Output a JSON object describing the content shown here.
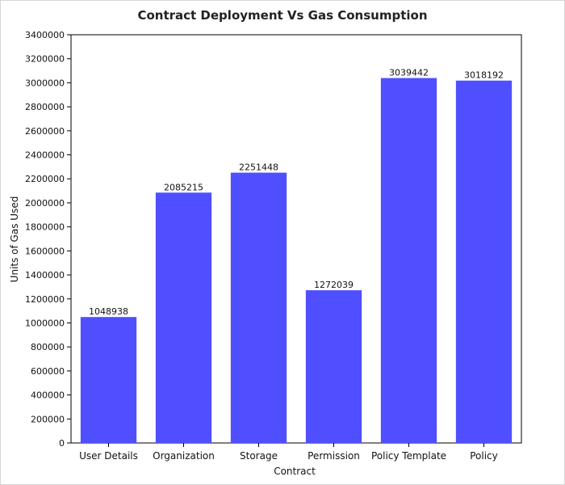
{
  "chart_data": {
    "type": "bar",
    "title": "Contract Deployment Vs Gas Consumption",
    "xlabel": "Contract",
    "ylabel": "Units of Gas Used",
    "categories": [
      "User Details",
      "Organization",
      "Storage",
      "Permission",
      "Policy Template",
      "Policy"
    ],
    "values": [
      1048938,
      2085215,
      2251448,
      1272039,
      3039442,
      3018192
    ],
    "data_labels": [
      "1048938",
      "2085215",
      "2251448",
      "1272039",
      "3039442",
      "3018192"
    ],
    "ylim": [
      0,
      3400000
    ],
    "yticks": [
      0,
      200000,
      400000,
      600000,
      800000,
      1000000,
      1200000,
      1400000,
      1600000,
      1800000,
      2000000,
      2200000,
      2400000,
      2600000,
      2800000,
      3000000,
      3200000,
      3400000
    ],
    "grid": false,
    "legend": "none",
    "bar_color": "#4f4fff"
  }
}
